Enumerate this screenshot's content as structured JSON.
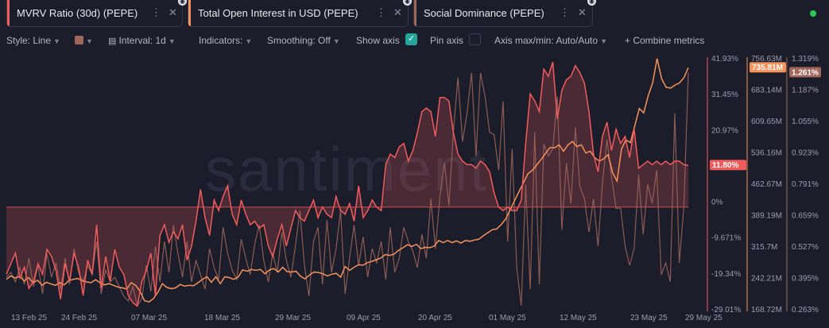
{
  "tabs": [
    {
      "title": "MVRV Ratio (30d) (PEPE)",
      "color": "#f25b5b"
    },
    {
      "title": "Total Open Interest in USD (PEPE)",
      "color": "#f5925b"
    },
    {
      "title": "Social Dominance (PEPE)",
      "color": "#a0665a"
    }
  ],
  "toolbar": {
    "style": "Style: Line",
    "interval": "Interval: 1d",
    "indicators": "Indicators:",
    "smoothing": "Smoothing: Off",
    "show_axis": "Show axis",
    "pin_axis": "Pin axis",
    "axis_maxmin": "Axis max/min: Auto/Auto",
    "combine": "Combine metrics"
  },
  "watermark": "santiment",
  "chart_data": {
    "type": "line",
    "x_ticks": [
      "13 Feb 25",
      "24 Feb 25",
      "07 Mar 25",
      "18 Mar 25",
      "29 Mar 25",
      "09 Apr 25",
      "20 Apr 25",
      "01 May 25",
      "12 May 25",
      "23 May 25",
      "29 May 25"
    ],
    "axes": {
      "mvrv": {
        "ticks": [
          "41.93%",
          "31.45%",
          "20.97%",
          "10.48%",
          "0%",
          "-9.671%",
          "-19.34%",
          "-29.01%"
        ],
        "range": [
          -29.01,
          41.93
        ],
        "current": "11.80%"
      },
      "open_interest": {
        "ticks": [
          "756.63M",
          "683.14M",
          "609.65M",
          "536.16M",
          "462.67M",
          "389.19M",
          "315.7M",
          "242.21M",
          "168.72M"
        ],
        "range": [
          168.72,
          756.63
        ],
        "current": "735.81M"
      },
      "social_dominance": {
        "ticks": [
          "1.319%",
          "1.187%",
          "1.055%",
          "0.923%",
          "0.791%",
          "0.659%",
          "0.527%",
          "0.395%",
          "0.263%"
        ],
        "range": [
          0.263,
          1.319
        ],
        "current": "1.261%"
      }
    },
    "series": [
      {
        "name": "MVRV Ratio (30d) (PEPE)",
        "color": "#f25b5b",
        "axis": "mvrv",
        "values": [
          -19.0,
          -16.0,
          -13.0,
          -20.0,
          -17.0,
          -23.0,
          -21.0,
          -16.0,
          -19.0,
          -12.0,
          -14.0,
          -18.0,
          -26.0,
          -16.0,
          -21.0,
          -13.0,
          -17.0,
          -25.0,
          -15.0,
          -19.0,
          -5.0,
          -23.0,
          -14.0,
          -21.0,
          -12.0,
          -17.0,
          -19.0,
          -25.0,
          -27.0,
          -28.0,
          -21.0,
          -18.0,
          -13.0,
          -25.0,
          -8.0,
          -5.0,
          -10.0,
          -7.0,
          -9.0,
          -5.0,
          -15.0,
          -11.0,
          -4.0,
          5.0,
          -3.0,
          -8.0,
          2.0,
          -1.0,
          3.0,
          6.0,
          -2.0,
          -5.0,
          2.0,
          -2.0,
          -5.0,
          -4.0,
          -6.0,
          -5.0,
          -11.0,
          -14.0,
          -9.0,
          -5.0,
          -11.0,
          -6.0,
          -1.0,
          -3.0,
          -4.0,
          -1.0,
          2.0,
          -3.0,
          0.0,
          -2.0,
          -3.0,
          3.0,
          -1.0,
          -2.0,
          1.0,
          -4.0,
          6.0,
          -3.0,
          -1.0,
          2.0,
          0.0,
          -1.0,
          12.0,
          15.0,
          14.0,
          17.0,
          18.0,
          13.0,
          16.0,
          21.0,
          27.0,
          28.0,
          27.0,
          20.0,
          31.0,
          31.0,
          30.0,
          21.0,
          15.0,
          13.0,
          12.0,
          12.0,
          11.0,
          13.0,
          12.0,
          10.0,
          4.0,
          0.0,
          -1.0,
          0.0,
          -1.0,
          -1.0,
          2.0,
          18.0,
          32.0,
          30.0,
          27.0,
          39.0,
          37.0,
          41.0,
          25.0,
          33.0,
          36.0,
          37.0,
          40.0,
          38.0,
          35.0,
          27.0,
          15.0,
          10.0,
          20.0,
          24.0,
          16.0,
          22.0,
          18.0,
          20.0,
          14.0,
          22.0,
          11.0,
          12.0,
          13.0,
          12.0,
          13.0,
          12.0,
          13.0,
          12.0,
          13.0,
          13.0,
          12.0,
          11.8
        ]
      },
      {
        "name": "Total Open Interest in USD (PEPE)",
        "color": "#f5925b",
        "axis": "open_interest",
        "values": [
          240,
          248,
          243,
          247,
          236,
          244,
          232,
          238,
          226,
          233,
          229,
          226,
          232,
          227,
          237,
          240,
          242,
          237,
          234,
          232,
          239,
          232,
          227,
          230,
          226,
          222,
          220,
          217,
          232,
          226,
          212,
          190,
          187,
          195,
          210,
          230,
          221,
          218,
          220,
          228,
          224,
          226,
          225,
          232,
          240,
          246,
          233,
          246,
          230,
          246,
          244,
          240,
          245,
          262,
          259,
          263,
          261,
          263,
          253,
          262,
          265,
          257,
          268,
          258,
          257,
          259,
          247,
          241,
          250,
          257,
          256,
          253,
          248,
          252,
          254,
          245,
          270,
          261,
          268,
          274,
          273,
          279,
          282,
          286,
          290,
          298,
          296,
          299,
          308,
          314,
          321,
          317,
          322,
          312,
          315,
          314,
          318,
          331,
          326,
          331,
          326,
          330,
          325,
          331,
          329,
          332,
          334,
          342,
          349,
          356,
          358,
          368,
          381,
          402,
          424,
          445,
          466,
          487,
          495,
          508,
          521,
          535,
          549,
          548,
          555,
          540,
          555,
          563,
          551,
          555,
          536,
          540,
          525,
          517,
          522,
          532,
          490,
          470,
          545,
          567,
          560,
          600,
          640,
          630,
          670,
          700,
          757,
          710,
          690,
          688,
          695,
          700,
          712,
          735.81
        ]
      },
      {
        "name": "Social Dominance (PEPE)",
        "color": "#a0665a",
        "axis": "social_dominance",
        "values": [
          0.4,
          0.42,
          0.38,
          0.44,
          0.37,
          0.48,
          0.36,
          0.45,
          0.33,
          0.5,
          0.4,
          0.46,
          0.35,
          0.48,
          0.37,
          0.52,
          0.42,
          0.38,
          0.45,
          0.41,
          0.55,
          0.33,
          0.43,
          0.38,
          0.4,
          0.36,
          0.32,
          0.3,
          0.36,
          0.28,
          0.31,
          0.45,
          0.34,
          0.53,
          0.38,
          0.55,
          0.42,
          0.62,
          0.5,
          0.4,
          0.55,
          0.38,
          0.47,
          0.41,
          0.35,
          0.52,
          0.44,
          0.39,
          0.61,
          0.5,
          0.43,
          0.39,
          0.56,
          0.48,
          0.41,
          0.54,
          0.62,
          0.47,
          0.38,
          0.5,
          0.42,
          0.59,
          0.47,
          0.4,
          0.53,
          0.68,
          0.45,
          0.32,
          0.55,
          0.61,
          0.37,
          0.64,
          0.42,
          0.52,
          0.68,
          0.33,
          0.48,
          0.62,
          0.45,
          0.57,
          0.4,
          0.52,
          0.46,
          0.55,
          0.39,
          0.61,
          0.42,
          0.48,
          0.61,
          0.55,
          0.51,
          0.44,
          0.58,
          0.48,
          0.73,
          0.52,
          0.74,
          0.88,
          0.7,
          1.02,
          1.24,
          0.97,
          1.09,
          1.26,
          0.91,
          1.26,
          1.16,
          1.01,
          1.0,
          0.85,
          1.14,
          0.55,
          0.94,
          0.44,
          0.28,
          0.79,
          0.35,
          1.01,
          0.37,
          0.96,
          0.91,
          0.94,
          1.16,
          0.6,
          0.88,
          0.71,
          1.03,
          0.78,
          0.73,
          0.59,
          0.73,
          0.53,
          0.8,
          0.98,
          0.82,
          0.69,
          0.69,
          0.53,
          0.45,
          0.52,
          0.83,
          0.58,
          0.79,
          0.71,
          0.85,
          0.41,
          0.46,
          0.38,
          1.09,
          0.46,
          0.69,
          1.261
        ]
      }
    ],
    "legend": "none",
    "grid": false
  }
}
